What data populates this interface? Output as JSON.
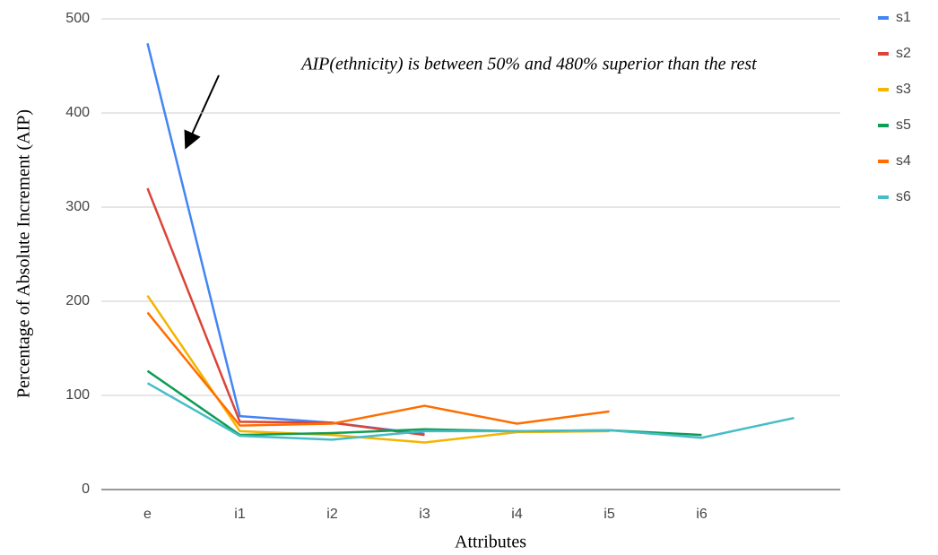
{
  "chart_data": {
    "type": "line",
    "annotation": "AIP(ethnicity) is between 50% and 480% superior than the rest",
    "x_label": "Attributes",
    "y_label": "Percentage of Absolute Increment (AIP)",
    "categories": [
      "e",
      "i1",
      "i2",
      "i3",
      "i4",
      "i5",
      "i6",
      null
    ],
    "series": [
      {
        "name": "s1",
        "color": "#4285f4",
        "values": [
          474,
          78,
          71,
          59,
          null,
          null,
          null,
          null
        ]
      },
      {
        "name": "s2",
        "color": "#db4437",
        "values": [
          320,
          72,
          71,
          58,
          null,
          null,
          null,
          null
        ]
      },
      {
        "name": "s3",
        "color": "#f4b400",
        "values": [
          206,
          62,
          58,
          50,
          61,
          62,
          null,
          null
        ]
      },
      {
        "name": "s5",
        "color": "#0f9d58",
        "values": [
          126,
          58,
          60,
          64,
          62,
          63,
          58,
          null
        ]
      },
      {
        "name": "s4",
        "color": "#ff6d00",
        "values": [
          188,
          68,
          70,
          89,
          70,
          83,
          null,
          null
        ]
      },
      {
        "name": "s6",
        "color": "#46bdc6",
        "values": [
          113,
          57,
          53,
          62,
          62,
          63,
          55,
          76
        ]
      }
    ],
    "ylim": [
      0,
      500
    ],
    "yticks": [
      0,
      100,
      200,
      300,
      400,
      500
    ],
    "grid": true,
    "legend": "right"
  }
}
